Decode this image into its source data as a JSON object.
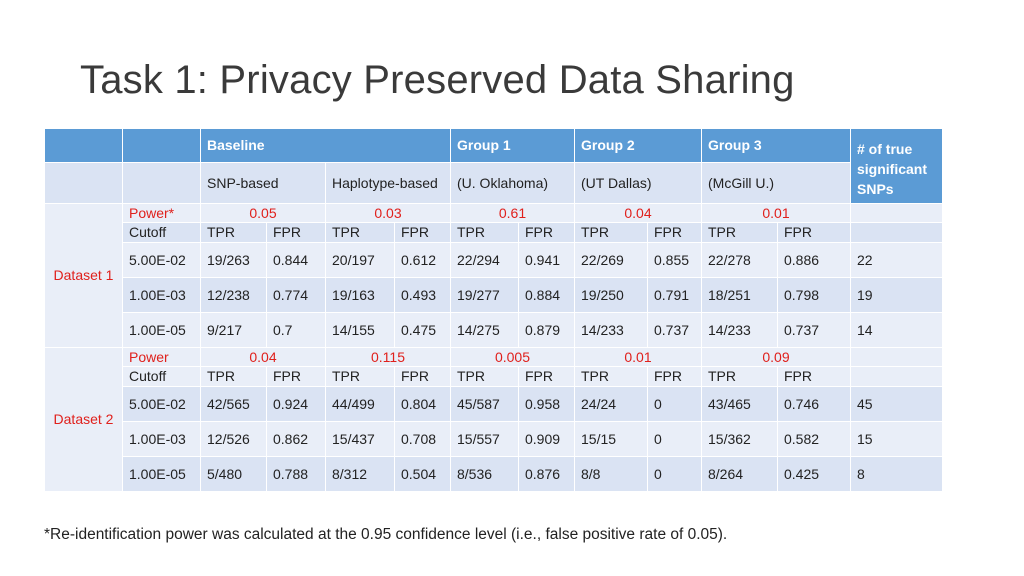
{
  "title": "Task 1: Privacy Preserved Data Sharing",
  "header": {
    "baseline": "Baseline",
    "group1": "Group 1",
    "group2": "Group 2",
    "group3": "Group 3",
    "true_snps": "# of true significant SNPs",
    "snp_based": "SNP-based",
    "haplotype_based": "Haplotype-based",
    "g1_sub": "(U. Oklahoma)",
    "g2_sub": "(UT Dallas)",
    "g3_sub": "(McGill U.)"
  },
  "labels": {
    "cutoff": "Cutoff",
    "tpr": "TPR",
    "fpr": "FPR"
  },
  "datasets": [
    {
      "name": "Dataset 1",
      "power_label": "Power*",
      "power": [
        "0.05",
        "0.03",
        "0.61",
        "0.04",
        "0.01"
      ],
      "rows": [
        {
          "cutoff": "5.00E-02",
          "cells": [
            "19/263",
            "0.844",
            "20/197",
            "0.612",
            "22/294",
            "0.941",
            "22/269",
            "0.855",
            "22/278",
            "0.886"
          ],
          "true": "22"
        },
        {
          "cutoff": "1.00E-03",
          "cells": [
            "12/238",
            "0.774",
            "19/163",
            "0.493",
            "19/277",
            "0.884",
            "19/250",
            "0.791",
            "18/251",
            "0.798"
          ],
          "true": "19"
        },
        {
          "cutoff": "1.00E-05",
          "cells": [
            "9/217",
            "0.7",
            "14/155",
            "0.475",
            "14/275",
            "0.879",
            "14/233",
            "0.737",
            "14/233",
            "0.737"
          ],
          "true": "14"
        }
      ]
    },
    {
      "name": "Dataset 2",
      "power_label": "Power",
      "power": [
        "0.04",
        "0.115",
        "0.005",
        "0.01",
        "0.09"
      ],
      "rows": [
        {
          "cutoff": "5.00E-02",
          "cells": [
            "42/565",
            "0.924",
            "44/499",
            "0.804",
            "45/587",
            "0.958",
            "24/24",
            "0",
            "43/465",
            "0.746"
          ],
          "true": "45"
        },
        {
          "cutoff": "1.00E-03",
          "cells": [
            "12/526",
            "0.862",
            "15/437",
            "0.708",
            "15/557",
            "0.909",
            "15/15",
            "0",
            "15/362",
            "0.582"
          ],
          "true": "15"
        },
        {
          "cutoff": "1.00E-05",
          "cells": [
            "5/480",
            "0.788",
            "8/312",
            "0.504",
            "8/536",
            "0.876",
            "8/8",
            "0",
            "8/264",
            "0.425"
          ],
          "true": "8"
        }
      ]
    }
  ],
  "footnote": "*Re-identification power was calculated at the 0.95 confidence level (i.e., false positive rate of 0.05)."
}
